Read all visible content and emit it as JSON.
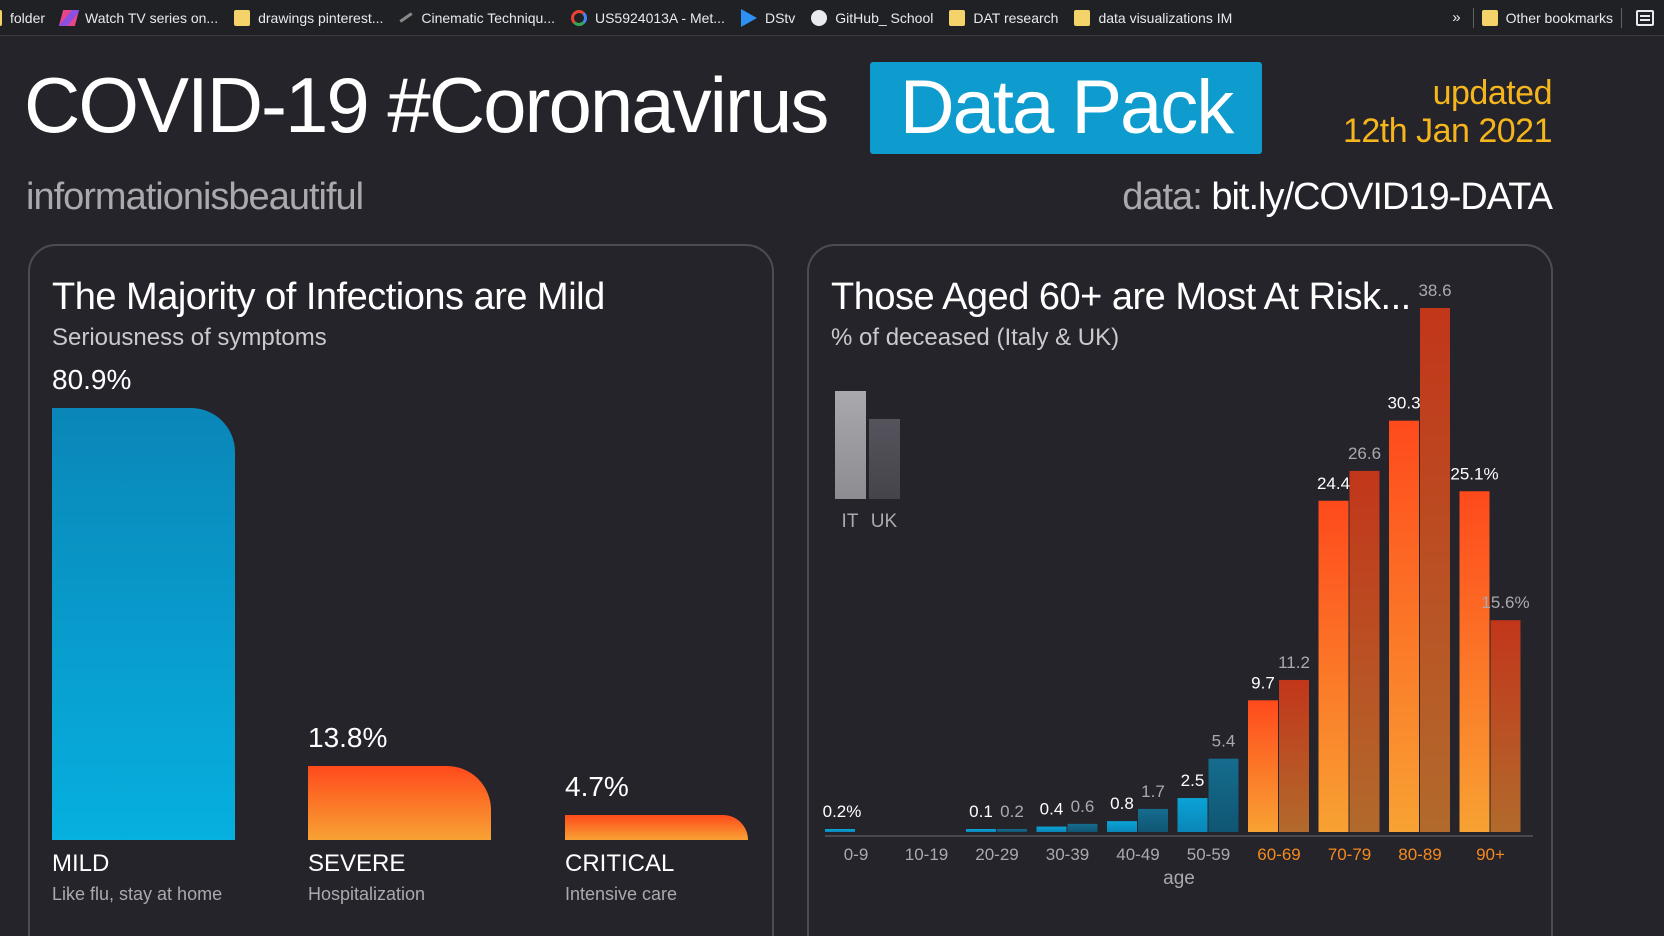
{
  "bookmarks": {
    "items": [
      {
        "label": "folder",
        "icon": "folder-icon"
      },
      {
        "label": "Watch TV series on...",
        "icon": "stripe-icon"
      },
      {
        "label": "drawings pinterest...",
        "icon": "folder-icon"
      },
      {
        "label": "Cinematic Techniqu...",
        "icon": "tool-icon"
      },
      {
        "label": "US5924013A - Met...",
        "icon": "google-icon"
      },
      {
        "label": "DStv",
        "icon": "play-icon"
      },
      {
        "label": "GitHub_ School",
        "icon": "github-icon"
      },
      {
        "label": "DAT research",
        "icon": "folder-icon"
      },
      {
        "label": "data visualizations IM",
        "icon": "folder-icon"
      }
    ],
    "more": "»",
    "other": "Other bookmarks"
  },
  "header": {
    "title": "COVID-19 #Coronavirus",
    "title_highlight": "Data Pack",
    "updated_line1": "updated",
    "updated_line2": "12th Jan 2021",
    "brand": "informationisbeautiful",
    "source_label": "data:",
    "source_url": "bit.ly/COVID19-DATA"
  },
  "colors": {
    "background": "#25242b",
    "accent_blue": "#0e9ccf",
    "accent_orange": "#ff4a1c",
    "accent_yellow": "#f5b51c",
    "it_bar": "#9e9ea3",
    "uk_bar": "#4d4c55"
  },
  "panel_left": {
    "title": "The Majority of Infections are Mild",
    "subtitle": "Seriousness of symptoms"
  },
  "panel_right": {
    "title": "Those Aged 60+ are Most At Risk...",
    "subtitle": "% of deceased (Italy & UK)",
    "legend": [
      "IT",
      "UK"
    ],
    "xlabel": "age"
  },
  "chart_data": [
    {
      "type": "bar",
      "title": "The Majority of Infections are Mild",
      "subtitle": "Seriousness of symptoms",
      "categories": [
        "MILD",
        "SEVERE",
        "CRITICAL"
      ],
      "descriptions": [
        "Like flu, stay at home",
        "Hospitalization",
        "Intensive care"
      ],
      "values": [
        80.9,
        13.8,
        4.7
      ],
      "value_labels": [
        "80.9%",
        "13.8%",
        "4.7%"
      ],
      "colors": [
        "blue",
        "orange",
        "orange"
      ],
      "ylim": [
        0,
        80.9
      ]
    },
    {
      "type": "bar",
      "title": "Those Aged 60+ are Most At Risk...",
      "subtitle": "% of deceased (Italy & UK)",
      "xlabel": "age",
      "categories": [
        "0-9",
        "10-19",
        "20-29",
        "30-39",
        "40-49",
        "50-59",
        "60-69",
        "70-79",
        "80-89",
        "90+"
      ],
      "series": [
        {
          "name": "IT",
          "values": [
            0.2,
            0,
            0.1,
            0.4,
            0.8,
            2.5,
            9.7,
            24.4,
            30.3,
            25.1
          ],
          "labels": [
            "0.2%",
            "",
            "0.1",
            "0.4",
            "0.8",
            "2.5",
            "9.7",
            "24.4",
            "30.3",
            "25.1%"
          ]
        },
        {
          "name": "UK",
          "values": [
            0,
            0,
            0.2,
            0.6,
            1.7,
            5.4,
            11.2,
            26.6,
            38.6,
            15.6
          ],
          "labels": [
            "",
            "",
            "0.2",
            "0.6",
            "1.7",
            "5.4",
            "11.2",
            "26.6",
            "38.6",
            "15.6%"
          ]
        }
      ],
      "highlight_from_category": "60-69",
      "ylim": [
        0,
        38.6
      ]
    }
  ]
}
